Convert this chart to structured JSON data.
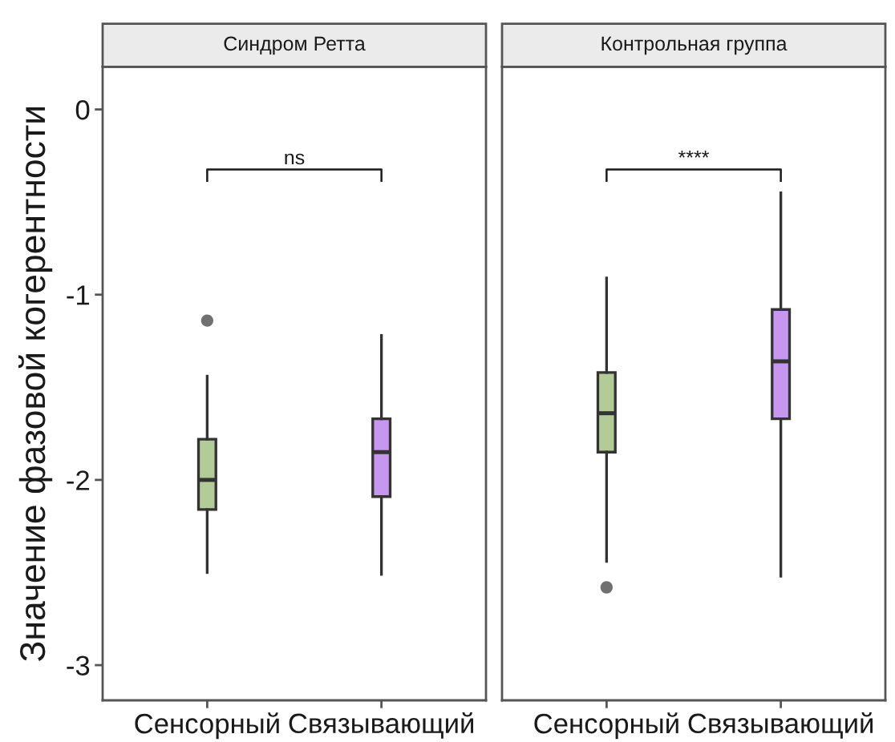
{
  "chart_data": [
    {
      "type": "box",
      "title": "Синдром Ретта",
      "ylabel": "Значение фазовой когерентности",
      "categories": [
        "Сенсорный",
        "Связывающий"
      ],
      "colors": [
        "#b2cb98",
        "#c796ef"
      ],
      "ylim": [
        -3.19,
        0.23
      ],
      "yticks": [
        -3,
        -2,
        -1,
        0
      ],
      "annotations": [
        "ns"
      ],
      "boxes": [
        {
          "low": -2.5,
          "q1": -2.16,
          "median": -2.0,
          "q3": -1.78,
          "high": -1.44,
          "outliers": [
            -1.14
          ]
        },
        {
          "low": -2.51,
          "q1": -2.09,
          "median": -1.85,
          "q3": -1.67,
          "high": -1.22
        }
      ]
    },
    {
      "type": "box",
      "title": "Контрольная группа",
      "categories": [
        "Сенсорный",
        "Связывающий"
      ],
      "colors": [
        "#b2cb98",
        "#c796ef"
      ],
      "ylim": [
        -3.19,
        0.23
      ],
      "yticks": [
        -3,
        -2,
        -1,
        0
      ],
      "tick_labels": "x",
      "annotations": [
        "****"
      ],
      "boxes": [
        {
          "low": -2.44,
          "q1": -1.85,
          "median": -1.64,
          "q3": -1.42,
          "high": -0.91,
          "outliers": [
            -2.58
          ]
        },
        {
          "low": -2.52,
          "q1": -1.67,
          "median": -1.36,
          "q3": -1.08,
          "high": -0.45
        }
      ]
    }
  ]
}
